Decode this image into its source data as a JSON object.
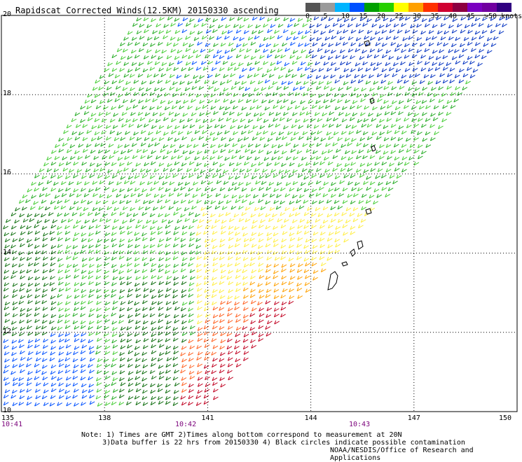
{
  "title": "Rapidscat Corrected Winds(12.5KM) 20150330 ascending",
  "legend": {
    "colors": [
      "#555555",
      "#9a9a9a",
      "#00b4ff",
      "#0050ff",
      "#00a000",
      "#26d000",
      "#ffff00",
      "#ffa000",
      "#ff3000",
      "#d00030",
      "#8c0040",
      "#7a00c0",
      "#7000a0",
      "#300080"
    ],
    "labels": [
      "0",
      "5",
      "10",
      "15",
      "20",
      "25",
      "30",
      "35",
      "40",
      "45",
      ">50 knots"
    ]
  },
  "lat_labels": [
    "20",
    "18",
    "16",
    "14",
    "12",
    "10"
  ],
  "lon_labels": [
    "135",
    "138",
    "141",
    "144",
    "147",
    "150"
  ],
  "time_labels": [
    "10:41",
    "10:42",
    "10:43"
  ],
  "notes": {
    "line1": "Note: 1) Times are GMT 2)Times along bottom correspond to measurement at 20N",
    "line2": "     3)Data buffer is 22 hrs from 20150330 4) Black circles indicate possible contamination"
  },
  "credit": "NOAA/NESDIS/Office of Research and Applications",
  "map_data": {
    "extent": {
      "lon": [
        135,
        150
      ],
      "lat": [
        10,
        20
      ]
    },
    "swath_color_zones": [
      "dark green west edge",
      "green north and west",
      "blue northeast corner",
      "yellow central south",
      "orange to red southeast"
    ]
  }
}
